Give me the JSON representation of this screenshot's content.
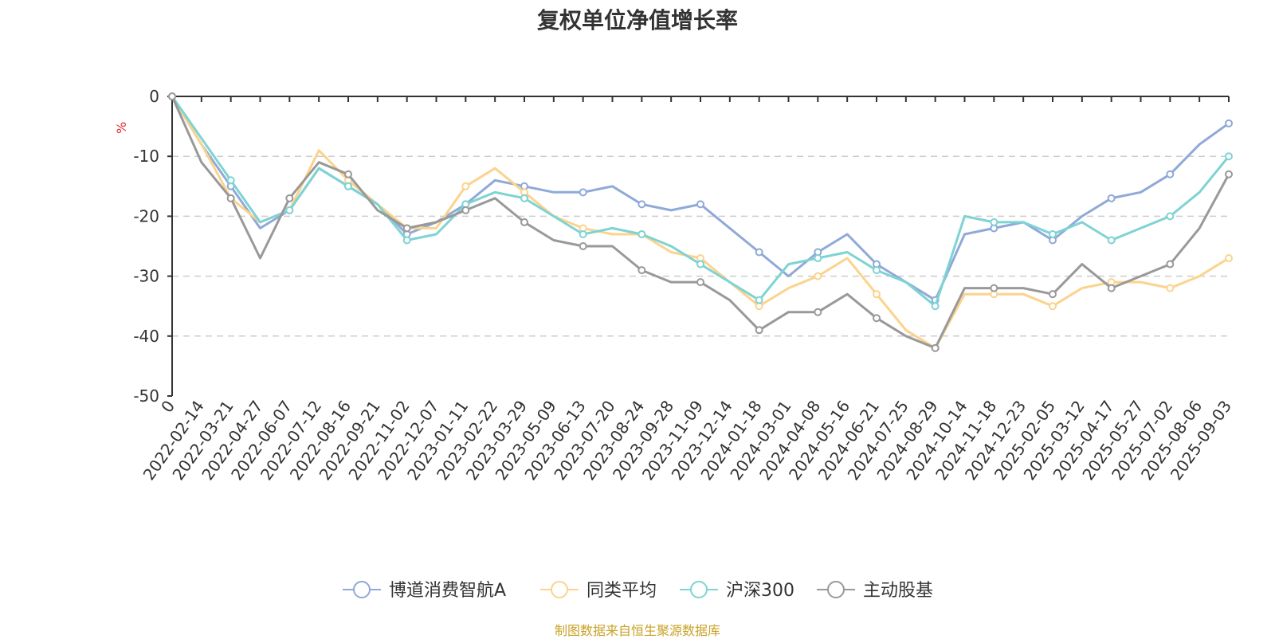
{
  "chart_data": {
    "type": "line",
    "title": "复权单位净值增长率",
    "y_unit": "%",
    "ylim": [
      -50,
      0
    ],
    "y_ticks": [
      0,
      -10,
      -20,
      -30,
      -40,
      -50
    ],
    "y_tick_labels": [
      "0",
      "-10",
      "-20",
      "-30",
      "-40",
      "-50"
    ],
    "grid": "horizontal dashed",
    "legend_position": "bottom",
    "x_categories": [
      "0",
      "2022-02-14",
      "2022-03-21",
      "2022-04-27",
      "2022-06-07",
      "2022-07-12",
      "2022-08-16",
      "2022-09-21",
      "2022-11-02",
      "2022-12-07",
      "2023-01-11",
      "2023-02-22",
      "2023-03-29",
      "2023-05-09",
      "2023-06-13",
      "2023-07-20",
      "2023-08-24",
      "2023-09-28",
      "2023-11-09",
      "2023-12-14",
      "2024-01-18",
      "2024-03-01",
      "2024-04-08",
      "2024-05-16",
      "2024-06-21",
      "2024-07-25",
      "2024-08-29",
      "2024-10-14",
      "2024-11-18",
      "2024-12-23",
      "2025-02-05",
      "2025-03-12",
      "2025-04-17",
      "2025-05-27",
      "2025-07-02",
      "2025-08-06",
      "2025-09-03"
    ],
    "series": [
      {
        "name": "博道消费智航A",
        "color": "#8fa9d8",
        "values": [
          0,
          -8,
          -15,
          -22,
          -19,
          -12,
          -15,
          -18,
          -23,
          -21,
          -18,
          -14,
          -15,
          -16,
          -16,
          -15,
          -18,
          -19,
          -18,
          -22,
          -26,
          -30,
          -26,
          -23,
          -28,
          -31,
          -34,
          -23,
          -22,
          -21,
          -24,
          -20,
          -17,
          -16,
          -13,
          -8,
          -4.5
        ]
      },
      {
        "name": "同类平均",
        "color": "#fbd38d",
        "values": [
          0,
          -8,
          -17,
          -21,
          -19,
          -9,
          -14,
          -18,
          -22,
          -22,
          -15,
          -12,
          -16,
          -20,
          -22,
          -23,
          -23,
          -26,
          -27,
          -31,
          -35,
          -32,
          -30,
          -27,
          -33,
          -39,
          -42,
          -33,
          -33,
          -33,
          -35,
          -32,
          -31,
          -31,
          -32,
          -30,
          -27
        ]
      },
      {
        "name": "沪深300",
        "color": "#7ed3d3",
        "values": [
          0,
          -7,
          -14,
          -21,
          -19,
          -12,
          -15,
          -18,
          -24,
          -23,
          -18,
          -16,
          -17,
          -20,
          -23,
          -22,
          -23,
          -25,
          -28,
          -31,
          -34,
          -28,
          -27,
          -26,
          -29,
          -31,
          -35,
          -20,
          -21,
          -21,
          -23,
          -21,
          -24,
          -22,
          -20,
          -16,
          -10
        ]
      },
      {
        "name": "主动股基",
        "color": "#999999",
        "values": [
          0,
          -11,
          -17,
          -27,
          -17,
          -11,
          -13,
          -19,
          -22,
          -21,
          -19,
          -17,
          -21,
          -24,
          -25,
          -25,
          -29,
          -31,
          -31,
          -34,
          -39,
          -36,
          -36,
          -33,
          -37,
          -40,
          -42,
          -32,
          -32,
          -32,
          -33,
          -28,
          -32,
          -30,
          -28,
          -22,
          -13
        ]
      }
    ]
  },
  "source_note": "制图数据来自恒生聚源数据库"
}
